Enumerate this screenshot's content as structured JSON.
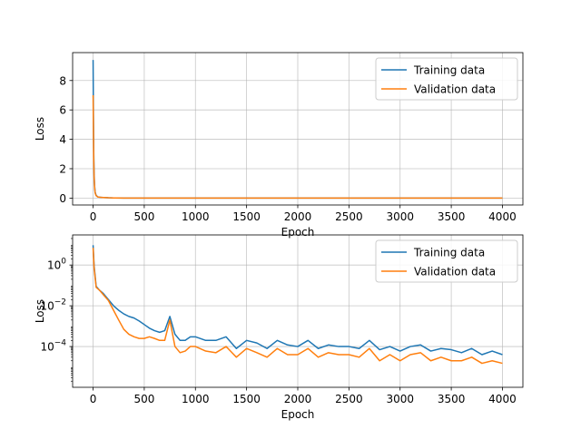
{
  "chart_data": [
    {
      "type": "line",
      "scale": "linear",
      "xlabel": "Epoch",
      "ylabel": "Loss",
      "xlim": [
        -200,
        4200
      ],
      "ylim": [
        -0.47,
        9.9
      ],
      "xticks": [
        0,
        500,
        1000,
        1500,
        2000,
        2500,
        3000,
        3500,
        4000
      ],
      "yticks": [
        0,
        2,
        4,
        6,
        8
      ],
      "ytick_labels": [
        "0",
        "2",
        "4",
        "6",
        "8"
      ],
      "grid": true,
      "legend": "top-right",
      "series": [
        {
          "name": "Training data",
          "color": "#1f77b4",
          "x": [
            0,
            3,
            6,
            10,
            15,
            20,
            30,
            45,
            60,
            80,
            100,
            150,
            200,
            300,
            500,
            1000,
            2000,
            3000,
            4000
          ],
          "y": [
            9.4,
            6.0,
            3.2,
            1.6,
            0.8,
            0.4,
            0.18,
            0.09,
            0.06,
            0.05,
            0.04,
            0.02,
            0.01,
            0.003,
            0.0005,
            0.0003,
            0.0003,
            0.0003,
            0.0003
          ]
        },
        {
          "name": "Validation data",
          "color": "#ff7f0e",
          "x": [
            0,
            3,
            6,
            10,
            15,
            20,
            30,
            45,
            60,
            80,
            100,
            150,
            200,
            300,
            500,
            1000,
            2000,
            3000,
            4000
          ],
          "y": [
            7.0,
            5.0,
            2.8,
            1.4,
            0.7,
            0.35,
            0.16,
            0.08,
            0.06,
            0.05,
            0.04,
            0.02,
            0.01,
            0.003,
            0.0005,
            0.0003,
            0.0003,
            0.0003,
            0.0003
          ]
        }
      ]
    },
    {
      "type": "line",
      "scale": "log",
      "xlabel": "Epoch",
      "ylabel": "Loss",
      "xlim": [
        -200,
        4200
      ],
      "ylim": [
        1e-06,
        30
      ],
      "xticks": [
        0,
        500,
        1000,
        1500,
        2000,
        2500,
        3000,
        3500,
        4000
      ],
      "yticks": [
        0.0001,
        0.01,
        1
      ],
      "ytick_labels": [
        "10^-4",
        "10^-2",
        "10^0"
      ],
      "grid": true,
      "legend": "top-right",
      "series": [
        {
          "name": "Training data",
          "color": "#1f77b4",
          "x": [
            0,
            10,
            30,
            60,
            100,
            150,
            200,
            250,
            300,
            350,
            400,
            450,
            500,
            550,
            600,
            650,
            700,
            750,
            800,
            850,
            900,
            950,
            1000,
            1100,
            1200,
            1300,
            1400,
            1500,
            1600,
            1700,
            1800,
            1900,
            2000,
            2100,
            2200,
            2300,
            2400,
            2500,
            2600,
            2700,
            2800,
            2900,
            3000,
            3100,
            3200,
            3300,
            3400,
            3500,
            3600,
            3700,
            3800,
            3900,
            4000
          ],
          "y": [
            9.4,
            0.9,
            0.09,
            0.06,
            0.04,
            0.02,
            0.01,
            0.006,
            0.004,
            0.003,
            0.0025,
            0.0018,
            0.0012,
            0.0008,
            0.0006,
            0.0005,
            0.0006,
            0.003,
            0.0004,
            0.0002,
            0.0002,
            0.0003,
            0.0003,
            0.0002,
            0.0002,
            0.0003,
            8e-05,
            0.0002,
            0.00015,
            8e-05,
            0.0002,
            0.00012,
            0.0001,
            0.0002,
            8e-05,
            0.00012,
            0.0001,
            0.0001,
            8e-05,
            0.0002,
            7e-05,
            0.0001,
            6e-05,
            0.0001,
            0.00012,
            6e-05,
            8e-05,
            7e-05,
            5e-05,
            8e-05,
            4e-05,
            6e-05,
            4e-05
          ]
        },
        {
          "name": "Validation data",
          "color": "#ff7f0e",
          "x": [
            0,
            10,
            30,
            60,
            100,
            150,
            200,
            250,
            300,
            350,
            400,
            450,
            500,
            550,
            600,
            650,
            700,
            750,
            800,
            850,
            900,
            950,
            1000,
            1100,
            1200,
            1300,
            1400,
            1500,
            1600,
            1700,
            1800,
            1900,
            2000,
            2100,
            2200,
            2300,
            2400,
            2500,
            2600,
            2700,
            2800,
            2900,
            3000,
            3100,
            3200,
            3300,
            3400,
            3500,
            3600,
            3700,
            3800,
            3900,
            4000
          ],
          "y": [
            7.0,
            0.7,
            0.08,
            0.06,
            0.035,
            0.018,
            0.006,
            0.002,
            0.0007,
            0.0004,
            0.0003,
            0.00025,
            0.00025,
            0.0003,
            0.00025,
            0.0002,
            0.0002,
            0.002,
            0.0001,
            5e-05,
            6e-05,
            0.0001,
            0.0001,
            6e-05,
            5e-05,
            0.0001,
            3e-05,
            8e-05,
            5e-05,
            3e-05,
            8e-05,
            4e-05,
            4e-05,
            8e-05,
            3e-05,
            5e-05,
            4e-05,
            4e-05,
            3e-05,
            8e-05,
            2e-05,
            4e-05,
            2e-05,
            4e-05,
            5e-05,
            2e-05,
            3e-05,
            2e-05,
            2e-05,
            3e-05,
            1.5e-05,
            2e-05,
            1.5e-05
          ]
        }
      ]
    }
  ]
}
